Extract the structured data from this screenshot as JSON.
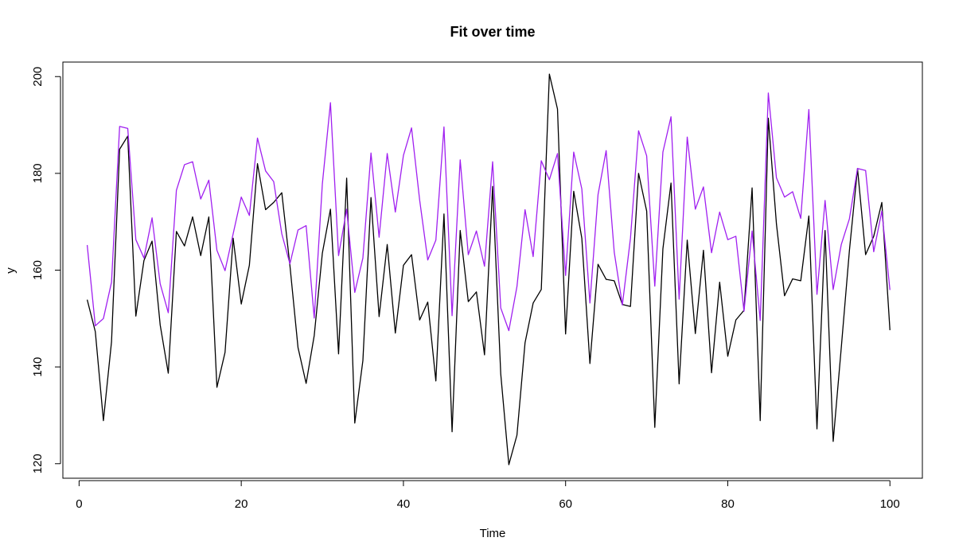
{
  "chart_data": {
    "type": "line",
    "title": "Fit over time",
    "xlabel": "Time",
    "ylabel": "y",
    "xlim": [
      -2,
      104
    ],
    "ylim": [
      117,
      203
    ],
    "xticks": [
      0,
      20,
      40,
      60,
      80,
      100
    ],
    "yticks": [
      120,
      140,
      160,
      180,
      200
    ],
    "grid": false,
    "x": [
      1,
      2,
      3,
      4,
      5,
      6,
      7,
      8,
      9,
      10,
      11,
      12,
      13,
      14,
      15,
      16,
      17,
      18,
      19,
      20,
      21,
      22,
      23,
      24,
      25,
      26,
      27,
      28,
      29,
      30,
      31,
      32,
      33,
      34,
      35,
      36,
      37,
      38,
      39,
      40,
      41,
      42,
      43,
      44,
      45,
      46,
      47,
      48,
      49,
      50,
      51,
      52,
      53,
      54,
      55,
      56,
      57,
      58,
      59,
      60,
      61,
      62,
      63,
      64,
      65,
      66,
      67,
      68,
      69,
      70,
      71,
      72,
      73,
      74,
      75,
      76,
      77,
      78,
      79,
      80,
      81,
      82,
      83,
      84,
      85,
      86,
      87,
      88,
      89,
      90,
      91,
      92,
      93,
      94,
      95,
      96,
      97,
      98,
      99,
      100
    ],
    "series": [
      {
        "color": "#000000",
        "values": [
          153.9,
          147.3,
          128.9,
          145.2,
          185.0,
          187.7,
          150.5,
          162.0,
          166.0,
          148.7,
          138.7,
          168.0,
          165.0,
          171.0,
          163.0,
          171.0,
          135.8,
          143.0,
          166.6,
          153.0,
          161.0,
          182.0,
          172.5,
          174.0,
          176.0,
          161.0,
          144.0,
          136.6,
          146.5,
          163.5,
          172.6,
          142.7,
          179.0,
          128.4,
          141.3,
          175.0,
          150.4,
          165.3,
          147.0,
          161.0,
          163.2,
          149.7,
          153.4,
          137.1,
          171.6,
          126.6,
          168.2,
          153.5,
          155.5,
          142.5,
          177.3,
          138.6,
          119.8,
          125.9,
          145.0,
          153.2,
          156.0,
          200.5,
          193.3,
          146.8,
          176.3,
          166.6,
          140.7,
          161.2,
          158.1,
          157.8,
          152.9,
          152.5,
          180.0,
          172.2,
          127.5,
          164.4,
          178.0,
          136.5,
          166.2,
          146.9,
          164.1,
          138.8,
          157.5,
          142.2,
          149.7,
          151.7,
          177.0,
          128.9,
          191.4,
          169.6,
          154.7,
          158.2,
          157.8,
          171.2,
          127.2,
          168.2,
          124.6,
          144.0,
          164.0,
          181.0,
          163.2,
          167.0,
          174.0,
          147.6
        ]
      },
      {
        "color": "#a020f0",
        "values": [
          165.2,
          148.5,
          150.0,
          157.5,
          189.7,
          189.3,
          166.3,
          162.5,
          170.8,
          157.2,
          151.2,
          176.5,
          181.8,
          182.4,
          174.7,
          178.6,
          164.1,
          159.9,
          167.5,
          175.1,
          171.3,
          187.3,
          180.5,
          178.3,
          167.5,
          161.3,
          168.3,
          169.2,
          150.1,
          177.8,
          194.6,
          163.0,
          172.6,
          155.4,
          162.5,
          184.2,
          166.8,
          184.1,
          172.0,
          183.7,
          189.4,
          174.5,
          162.1,
          166.2,
          189.6,
          150.6,
          182.8,
          163.2,
          168.1,
          160.8,
          182.4,
          152.2,
          147.5,
          156.6,
          172.5,
          162.8,
          182.6,
          178.7,
          184.1,
          158.9,
          184.4,
          176.8,
          153.2,
          175.6,
          184.7,
          163.7,
          152.8,
          166.6,
          188.8,
          183.6,
          156.7,
          184.4,
          191.7,
          154.0,
          187.5,
          172.6,
          177.2,
          163.6,
          172.0,
          166.3,
          167.0,
          151.5,
          168.1,
          149.6,
          196.6,
          179.1,
          175.1,
          176.2,
          170.7,
          193.2,
          155.0,
          174.4,
          156.0,
          165.3,
          170.6,
          181.0,
          180.6,
          163.8,
          172.2,
          155.9
        ]
      }
    ]
  }
}
